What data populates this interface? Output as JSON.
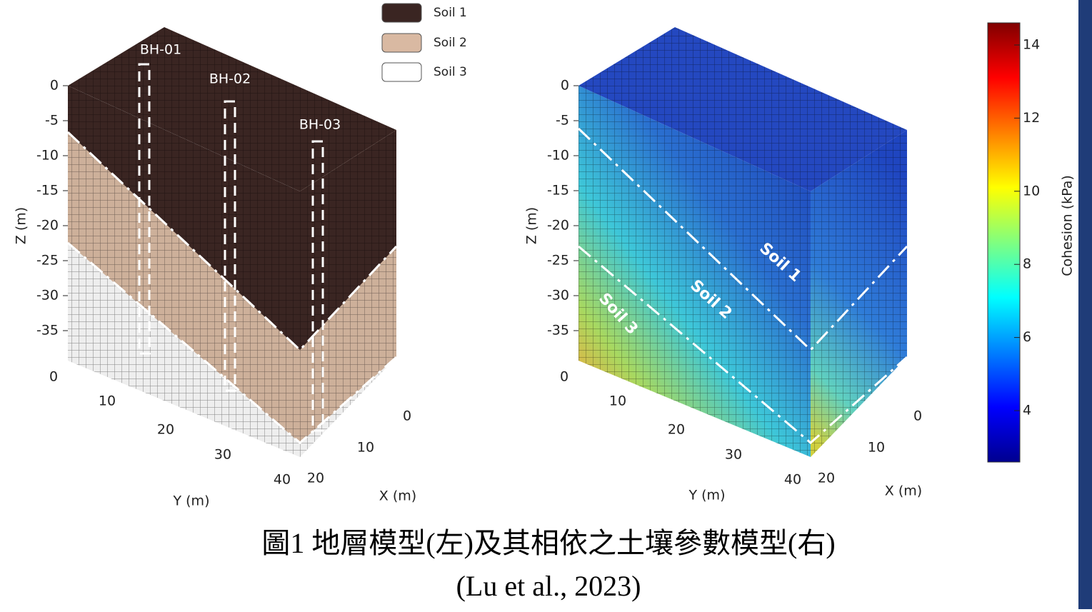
{
  "legend": [
    "Soil 1",
    "Soil 2",
    "Soil 3"
  ],
  "left_panel": {
    "boreholes": [
      "BH-01",
      "BH-02",
      "BH-03"
    ],
    "z_axis": {
      "label": "Z (m)",
      "ticks": [
        0,
        -5,
        -10,
        -15,
        -20,
        -25,
        -30,
        -35
      ]
    },
    "y_axis": {
      "label": "Y (m)",
      "ticks": [
        0,
        10,
        20,
        30,
        40
      ]
    },
    "x_axis": {
      "label": "X (m)",
      "ticks": [
        0,
        10,
        20
      ]
    }
  },
  "right_panel": {
    "soil_labels": [
      "Soil 1",
      "Soil 2",
      "Soil 3"
    ],
    "z_axis": {
      "label": "Z (m)",
      "ticks": [
        0,
        -5,
        -10,
        -15,
        -20,
        -25,
        -30,
        -35
      ]
    },
    "y_axis": {
      "label": "Y (m)",
      "ticks": [
        0,
        10,
        20,
        30,
        40
      ]
    },
    "x_axis": {
      "label": "X (m)",
      "ticks": [
        0,
        10,
        20
      ]
    }
  },
  "colorbar": {
    "label": "Cohesion (kPa)",
    "ticks": [
      4,
      6,
      8,
      10,
      12,
      14
    ]
  },
  "caption": {
    "line1": "圖1 地層模型(左)及其相依之土壤參數模型(右)",
    "line2": "(Lu et al., 2023)"
  }
}
